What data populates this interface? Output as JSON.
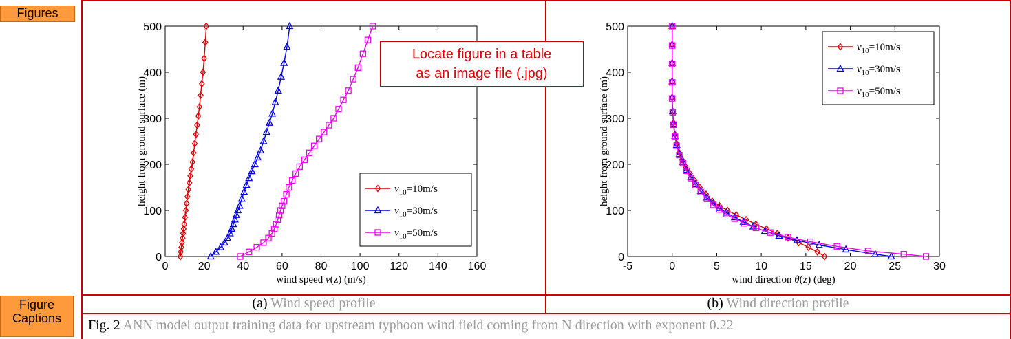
{
  "labels": {
    "figures": "Figures",
    "figure_captions": [
      "Figure",
      "Captions"
    ]
  },
  "callout": {
    "line1": "Locate figure in a table",
    "line2": "as an image file (.jpg)"
  },
  "captions": {
    "a_prefix": "(a)",
    "a_text": "Wind speed profile",
    "b_prefix": "(b)",
    "b_text": "Wind direction profile",
    "fig_prefix": "Fig. 2",
    "fig_text": "ANN model output training data for upstream typhoon wind field coming from N direction with exponent 0.22"
  },
  "colors": {
    "frame": "#cc0000",
    "tag": "#ff9a3c",
    "caption_gray": "#9a9a9a",
    "series": [
      "#e00000",
      "#0000ee",
      "#ee00ee"
    ]
  },
  "chart_data": [
    {
      "type": "line",
      "xlabel_prefix": "wind speed ",
      "xlabel_var": "v",
      "xlabel_suffix": "(z) (m/s)",
      "ylabel": "height from ground surface (m)",
      "xlim": [
        0,
        160
      ],
      "ylim": [
        0,
        500
      ],
      "xticks": [
        0,
        20,
        40,
        60,
        80,
        100,
        120,
        140,
        160
      ],
      "yticks": [
        0,
        100,
        200,
        300,
        400,
        500
      ],
      "grid": false,
      "legend_position": "lower-right",
      "series": [
        {
          "name_var": "v",
          "name_sub": "10",
          "name_rest": "=10m/s",
          "marker": "diamond",
          "x": [
            7.8,
            8.0,
            8.3,
            8.6,
            8.9,
            9.2,
            9.5,
            9.8,
            10.2,
            10.6,
            11.0,
            11.4,
            11.9,
            12.4,
            12.9,
            13.4,
            14.0,
            14.6,
            15.2,
            15.8,
            16.4,
            17.0,
            17.6,
            18.2,
            18.8,
            19.4,
            20.0,
            20.6,
            21.1
          ],
          "y": [
            0,
            10,
            20,
            30,
            40,
            50,
            60,
            70,
            85,
            100,
            115,
            130,
            145,
            160,
            175,
            190,
            205,
            225,
            245,
            265,
            285,
            305,
            325,
            350,
            375,
            400,
            430,
            465,
            500
          ]
        },
        {
          "name_var": "v",
          "name_sub": "10",
          "name_rest": "=30m/s",
          "marker": "triangle",
          "x": [
            23.4,
            26.0,
            28.5,
            30.5,
            32.0,
            33.3,
            34.2,
            35.0,
            35.8,
            36.5,
            37.3,
            38.2,
            39.3,
            40.5,
            41.7,
            43.0,
            44.5,
            46.0,
            47.5,
            49.0,
            50.5,
            52.0,
            53.5,
            55.0,
            56.5,
            58.0,
            59.5,
            61.0,
            62.5,
            63.9
          ],
          "y": [
            0,
            10,
            20,
            30,
            40,
            50,
            60,
            70,
            80,
            90,
            100,
            110,
            125,
            140,
            155,
            170,
            185,
            200,
            215,
            230,
            250,
            270,
            290,
            310,
            335,
            360,
            390,
            420,
            455,
            500
          ]
        },
        {
          "name_var": "v",
          "name_sub": "10",
          "name_rest": "=50m/s",
          "marker": "square",
          "x": [
            38.5,
            43.0,
            47.0,
            50.5,
            53.0,
            54.8,
            56.0,
            57.0,
            57.8,
            58.5,
            59.2,
            60.0,
            61.0,
            62.2,
            63.5,
            65.2,
            67.0,
            69.0,
            71.5,
            74.0,
            76.5,
            79.0,
            81.5,
            84.0,
            86.5,
            89.0,
            91.5,
            94.0,
            96.5,
            99.0,
            101.5,
            104.0,
            106.5
          ],
          "y": [
            0,
            10,
            20,
            30,
            40,
            50,
            60,
            70,
            80,
            90,
            100,
            110,
            120,
            135,
            150,
            165,
            180,
            195,
            210,
            225,
            240,
            255,
            270,
            285,
            300,
            320,
            340,
            360,
            385,
            410,
            440,
            470,
            500
          ]
        }
      ]
    },
    {
      "type": "line",
      "xlabel_prefix": "wind direction ",
      "xlabel_var": "θ",
      "xlabel_suffix": "(z) (deg)",
      "ylabel": "height from ground surface (m)",
      "xlim": [
        -5,
        30
      ],
      "ylim": [
        0,
        500
      ],
      "xticks": [
        -5,
        0,
        5,
        10,
        15,
        20,
        25,
        30
      ],
      "yticks": [
        0,
        100,
        200,
        300,
        400,
        500
      ],
      "grid": false,
      "legend_position": "upper-right",
      "series": [
        {
          "name_var": "v",
          "name_sub": "10",
          "name_rest": "=10m/s",
          "marker": "diamond",
          "x": [
            17.1,
            16.3,
            15.3,
            14.2,
            13.0,
            11.8,
            10.6,
            9.4,
            8.3,
            7.2,
            6.2,
            5.3,
            4.5,
            3.8,
            3.1,
            2.5,
            2.0,
            1.5,
            1.1,
            0.8,
            0.5,
            0.3,
            0.15,
            0.05,
            0.0,
            0.0,
            0.0,
            0.0,
            0.0
          ],
          "y": [
            0,
            10,
            20,
            30,
            40,
            50,
            60,
            70,
            80,
            90,
            100,
            110,
            120,
            135,
            150,
            165,
            180,
            195,
            210,
            225,
            245,
            265,
            290,
            315,
            345,
            380,
            420,
            460,
            500
          ]
        },
        {
          "name_var": "v",
          "name_sub": "10",
          "name_rest": "=30m/s",
          "marker": "triangle",
          "x": [
            24.6,
            22.8,
            19.5,
            16.5,
            14.0,
            12.0,
            10.4,
            9.1,
            8.0,
            7.0,
            6.1,
            5.3,
            4.6,
            3.9,
            3.2,
            2.6,
            2.1,
            1.6,
            1.2,
            0.8,
            0.5,
            0.3,
            0.15,
            0.05,
            0.0,
            0.0,
            0.0,
            0.0,
            0.0
          ],
          "y": [
            0,
            5,
            15,
            25,
            35,
            45,
            55,
            65,
            75,
            85,
            95,
            105,
            115,
            128,
            142,
            157,
            172,
            188,
            205,
            222,
            242,
            262,
            288,
            315,
            345,
            380,
            420,
            460,
            500
          ]
        },
        {
          "name_var": "v",
          "name_sub": "10",
          "name_rest": "=50m/s",
          "marker": "square",
          "x": [
            28.5,
            26.0,
            22.0,
            18.5,
            15.5,
            13.0,
            11.0,
            9.4,
            8.1,
            7.0,
            6.1,
            5.3,
            4.6,
            3.9,
            3.2,
            2.6,
            2.1,
            1.6,
            1.2,
            0.8,
            0.5,
            0.3,
            0.15,
            0.05,
            0.0,
            0.0,
            0.0,
            0.0,
            0.0
          ],
          "y": [
            0,
            5,
            12,
            22,
            32,
            42,
            52,
            62,
            72,
            82,
            92,
            102,
            112,
            125,
            140,
            155,
            170,
            186,
            203,
            220,
            240,
            260,
            286,
            313,
            343,
            378,
            418,
            458,
            500
          ]
        }
      ]
    }
  ]
}
